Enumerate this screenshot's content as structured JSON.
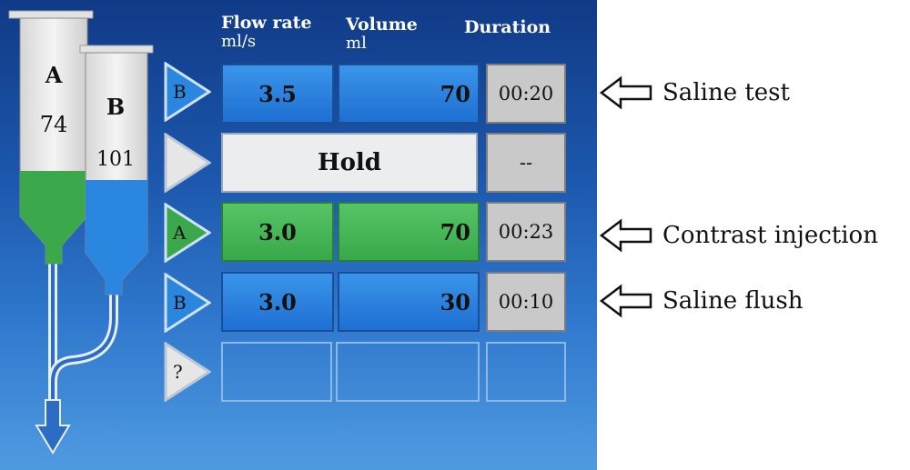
{
  "syringes": {
    "a": {
      "letter": "A",
      "volume": "74",
      "color": "#3ba84c"
    },
    "b": {
      "letter": "B",
      "volume": "101",
      "color": "#2b86e0"
    }
  },
  "headers": {
    "flow_rate": {
      "title": "Flow rate",
      "unit": "ml/s"
    },
    "volume": {
      "title": "Volume",
      "unit": "ml"
    },
    "duration": {
      "title": "Duration"
    }
  },
  "phases": [
    {
      "syringe": "B",
      "flow_rate": "3.5",
      "volume": "70",
      "duration": "00:20",
      "color": "#2b86e0"
    },
    {
      "hold_label": "Hold",
      "duration": "--"
    },
    {
      "syringe": "A",
      "flow_rate": "3.0",
      "volume": "70",
      "duration": "00:23",
      "color": "#3ba84c"
    },
    {
      "syringe": "B",
      "flow_rate": "3.0",
      "volume": "30",
      "duration": "00:10",
      "color": "#2b86e0"
    },
    {
      "syringe": "?"
    }
  ],
  "annotations": {
    "saline_test": "Saline test",
    "contrast_injection": "Contrast injection",
    "saline_flush": "Saline flush"
  }
}
